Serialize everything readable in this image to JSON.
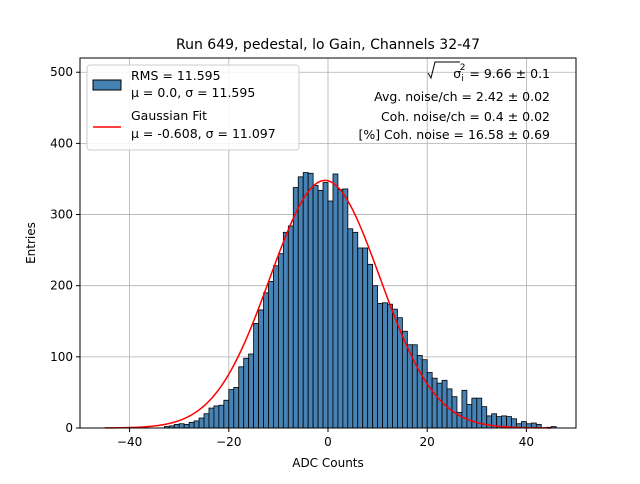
{
  "chart_data": {
    "type": "bar",
    "title": "Run 649, pedestal, lo Gain, Channels 32-47",
    "xlabel": "ADC Counts",
    "ylabel": "Entries",
    "xlim": [
      -50,
      50
    ],
    "ylim": [
      0,
      520
    ],
    "xticks": [
      -40,
      -20,
      0,
      20,
      40
    ],
    "yticks": [
      0,
      100,
      200,
      300,
      400,
      500
    ],
    "grid": true,
    "bar_color": "#4682b4",
    "fit_color": "#ff0000",
    "bin_width": 1,
    "bin_starts": [
      -45,
      -44,
      -43,
      -42,
      -41,
      -40,
      -39,
      -38,
      -37,
      -36,
      -35,
      -34,
      -33,
      -32,
      -31,
      -30,
      -29,
      -28,
      -27,
      -26,
      -25,
      -24,
      -23,
      -22,
      -21,
      -20,
      -19,
      -18,
      -17,
      -16,
      -15,
      -14,
      -13,
      -12,
      -11,
      -10,
      -9,
      -8,
      -7,
      -6,
      -5,
      -4,
      -3,
      -2,
      -1,
      0,
      1,
      2,
      3,
      4,
      5,
      6,
      7,
      8,
      9,
      10,
      11,
      12,
      13,
      14,
      15,
      16,
      17,
      18,
      19,
      20,
      21,
      22,
      23,
      24,
      25,
      26,
      27,
      28,
      29,
      30,
      31,
      32,
      33,
      34,
      35,
      36,
      37,
      38,
      39,
      40,
      41,
      42,
      43,
      44,
      45
    ],
    "entries": [
      0,
      0,
      0,
      0,
      0,
      0,
      0,
      0,
      0,
      0,
      0,
      0,
      2,
      3,
      5,
      6,
      5,
      8,
      10,
      14,
      20,
      28,
      31,
      32,
      39,
      54,
      57,
      86,
      98,
      104,
      147,
      166,
      190,
      206,
      228,
      245,
      275,
      284,
      338,
      353,
      359,
      358,
      341,
      334,
      345,
      319,
      357,
      335,
      336,
      280,
      275,
      253,
      253,
      230,
      200,
      175,
      176,
      174,
      167,
      155,
      136,
      117,
      117,
      102,
      96,
      78,
      70,
      63,
      67,
      55,
      44,
      22,
      53,
      33,
      42,
      42,
      30,
      17,
      20,
      16,
      17,
      16,
      13,
      6,
      9,
      6,
      7,
      5,
      0,
      1,
      2
    ],
    "legend": {
      "position": "upper left",
      "entries": [
        {
          "kind": "histogram",
          "lines": [
            "RMS = 11.595",
            "μ = 0.0, σ = 11.595"
          ]
        },
        {
          "kind": "fit",
          "lines": [
            "Gaussian Fit",
            "μ = -0.608, σ = 11.097"
          ]
        }
      ]
    },
    "fit": {
      "mu": -0.608,
      "sigma": 11.097,
      "amplitude": 348,
      "x_range": [
        -45,
        45
      ]
    },
    "annotations": {
      "sqrt_prefix": "√",
      "sigma_label": "σ",
      "sigma_sub": "i",
      "sigma_sup": "2",
      "sigma_value": " = 9.66 ± 0.1",
      "line2": "Avg. noise/ch = 2.42 ± 0.02",
      "line3": "Coh. noise/ch = 0.4 ± 0.02",
      "line4": "[%] Coh. noise = 16.58 ± 0.69"
    }
  }
}
